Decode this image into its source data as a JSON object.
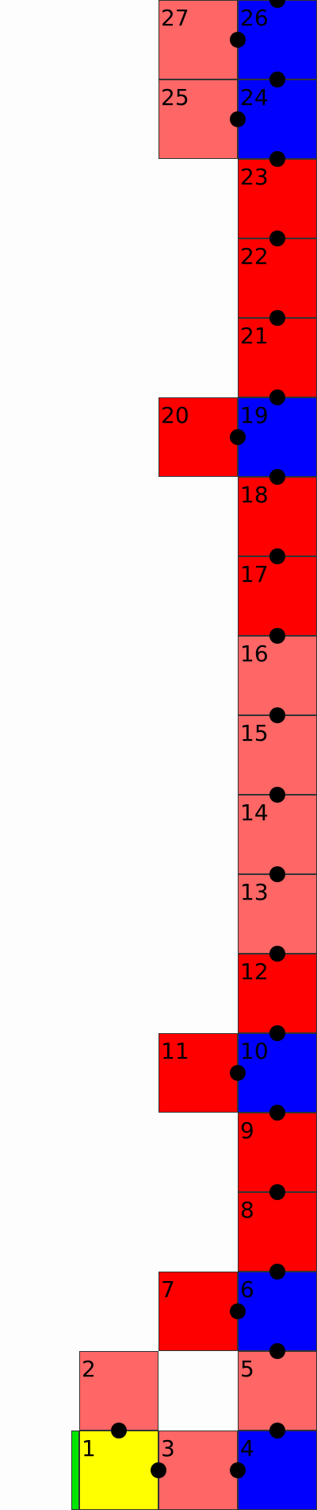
{
  "colors": {
    "red": "#ff0000",
    "pink": "#ff6666",
    "blue": "#0000ff",
    "yellow": "#ffff00",
    "green": "#00e600",
    "marker": "#000000"
  },
  "cells": [
    {
      "label": "1",
      "color": "yellow"
    },
    {
      "label": "2",
      "color": "pink"
    },
    {
      "label": "3",
      "color": "pink"
    },
    {
      "label": "4",
      "color": "blue"
    },
    {
      "label": "5",
      "color": "pink"
    },
    {
      "label": "6",
      "color": "blue"
    },
    {
      "label": "7",
      "color": "red"
    },
    {
      "label": "8",
      "color": "red"
    },
    {
      "label": "9",
      "color": "red"
    },
    {
      "label": "10",
      "color": "blue"
    },
    {
      "label": "11",
      "color": "red"
    },
    {
      "label": "12",
      "color": "red"
    },
    {
      "label": "13",
      "color": "pink"
    },
    {
      "label": "14",
      "color": "pink"
    },
    {
      "label": "15",
      "color": "pink"
    },
    {
      "label": "16",
      "color": "pink"
    },
    {
      "label": "17",
      "color": "red"
    },
    {
      "label": "18",
      "color": "red"
    },
    {
      "label": "19",
      "color": "blue"
    },
    {
      "label": "20",
      "color": "red"
    },
    {
      "label": "21",
      "color": "red"
    },
    {
      "label": "22",
      "color": "red"
    },
    {
      "label": "23",
      "color": "red"
    },
    {
      "label": "24",
      "color": "blue"
    },
    {
      "label": "25",
      "color": "pink"
    },
    {
      "label": "26",
      "color": "blue"
    },
    {
      "label": "27",
      "color": "pink"
    }
  ]
}
